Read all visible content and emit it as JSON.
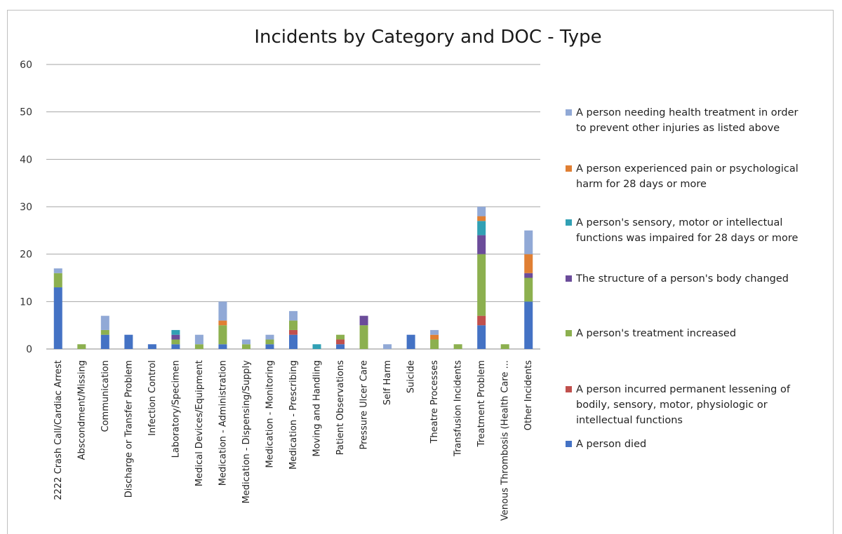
{
  "chart_data": {
    "type": "bar",
    "stacked": true,
    "title": "Incidents by Category and DOC - Type",
    "xlabel": "",
    "ylabel": "",
    "ylim": [
      0,
      60
    ],
    "yticks": [
      0,
      10,
      20,
      30,
      40,
      50,
      60
    ],
    "grid": true,
    "legend_position": "right",
    "categories": [
      "2222 Crash Call/Cardiac Arrest",
      "Abscondment/Missing",
      "Communication",
      "Discharge or Transfer Problem",
      "Infection Control",
      "Laboratory/Specimen",
      "Medical Devices/Equipment",
      "Medication - Administration",
      "Medication - Dispensing/Supply",
      "Medication - Monitoring",
      "Medication - Prescribing",
      "Moving and Handling",
      "Patient Observations",
      "Pressure Ulcer Care",
      "Self Harm",
      "Suicide",
      "Theatre Processes",
      "Transfusion Incidents",
      "Treatment Problem",
      "Venous Thrombosis (Health Care ...",
      "Other Incidents"
    ],
    "series": [
      {
        "name": "A person died",
        "color": "#4472c4",
        "values": [
          13,
          0,
          3,
          3,
          1,
          1,
          0,
          1,
          0,
          1,
          3,
          0,
          1,
          0,
          0,
          3,
          0,
          0,
          5,
          0,
          10
        ]
      },
      {
        "name": "A person incurred permanent lessening of bodily, sensory, motor, physiologic or intellectual functions",
        "color": "#c0504d",
        "values": [
          0,
          0,
          0,
          0,
          0,
          0,
          0,
          0,
          0,
          0,
          1,
          0,
          1,
          0,
          0,
          0,
          0,
          0,
          2,
          0,
          0
        ]
      },
      {
        "name": "A person's treatment increased",
        "color": "#8cb04f",
        "values": [
          3,
          1,
          1,
          0,
          0,
          1,
          1,
          4,
          1,
          1,
          2,
          0,
          1,
          5,
          0,
          0,
          2,
          1,
          13,
          1,
          5
        ]
      },
      {
        "name": "The structure of a person's body changed",
        "color": "#6b4c9a",
        "values": [
          0,
          0,
          0,
          0,
          0,
          1,
          0,
          0,
          0,
          0,
          0,
          0,
          0,
          2,
          0,
          0,
          0,
          0,
          4,
          0,
          1
        ]
      },
      {
        "name": "A person's sensory, motor or intellectual functions was impaired for 28 days or more",
        "color": "#31a0b4",
        "values": [
          0,
          0,
          0,
          0,
          0,
          1,
          0,
          0,
          0,
          0,
          0,
          1,
          0,
          0,
          0,
          0,
          0,
          0,
          3,
          0,
          0
        ]
      },
      {
        "name": "A person experienced pain or psychological harm for 28 days or more",
        "color": "#e07f33",
        "values": [
          0,
          0,
          0,
          0,
          0,
          0,
          0,
          1,
          0,
          0,
          0,
          0,
          0,
          0,
          0,
          0,
          1,
          0,
          1,
          0,
          4
        ]
      },
      {
        "name": "A person needing health treatment in order to prevent other injuries as listed above",
        "color": "#91a9d6",
        "values": [
          1,
          0,
          3,
          0,
          0,
          0,
          2,
          4,
          1,
          1,
          2,
          0,
          0,
          0,
          1,
          0,
          1,
          0,
          2,
          0,
          5
        ]
      }
    ],
    "legend_order": [
      {
        "lines": [
          "A person needing health treatment in order",
          "to prevent other injuries as listed above"
        ],
        "color": "#91a9d6"
      },
      {
        "lines": [
          "A person experienced pain or psychological",
          "harm for 28 days or more"
        ],
        "color": "#e07f33"
      },
      {
        "lines": [
          "A person's sensory, motor or intellectual",
          "functions was impaired for 28 days or more"
        ],
        "color": "#31a0b4"
      },
      {
        "lines": [
          "The structure of a person's body changed"
        ],
        "color": "#6b4c9a"
      },
      {
        "lines": [
          "A person's treatment increased"
        ],
        "color": "#8cb04f"
      },
      {
        "lines": [
          "A person incurred permanent lessening of",
          "bodily, sensory, motor, physiologic or",
          "intellectual functions"
        ],
        "color": "#c0504d"
      },
      {
        "lines": [
          "A person died"
        ],
        "color": "#4472c4"
      }
    ]
  }
}
